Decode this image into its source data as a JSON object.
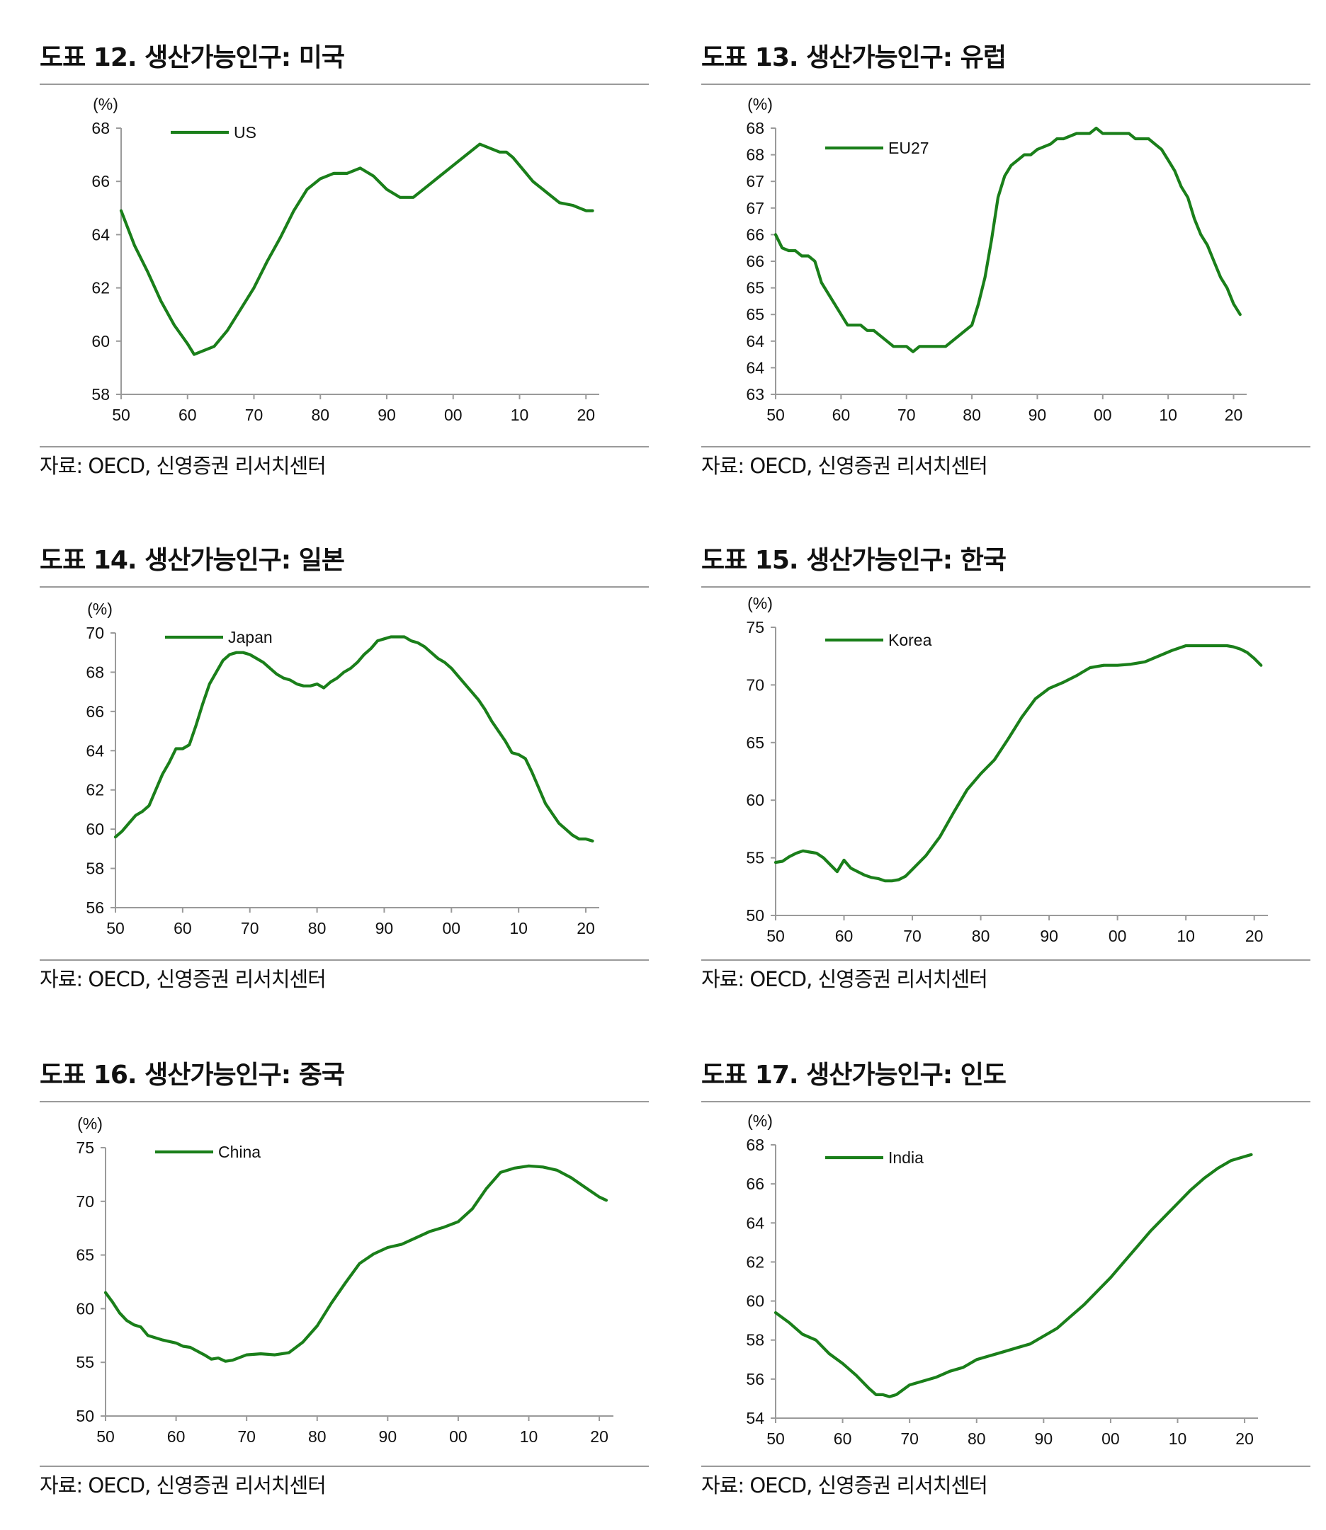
{
  "source_text": "자료: OECD, 신영증권 리서치센터",
  "line_color": "#1a7f1a",
  "panels": [
    {
      "title": "도표 12. 생산가능인구: 미국",
      "source": "자료: OECD, 신영증권 리서치센터",
      "chart_data": {
        "type": "line",
        "title": "도표 12. 생산가능인구: 미국",
        "ylabel": "(%)",
        "xlabel": "",
        "ylim": [
          58,
          68
        ],
        "yticks": [
          "58",
          "60",
          "62",
          "64",
          "66",
          "68"
        ],
        "xlim": [
          1950,
          2022
        ],
        "xticks": [
          "50",
          "60",
          "70",
          "80",
          "90",
          "00",
          "10",
          "20"
        ],
        "legend_position": "top-left",
        "grid": false,
        "series": [
          {
            "name": "US",
            "x": [
              1950,
              1952,
              1954,
              1956,
              1958,
              1960,
              1961,
              1962,
              1964,
              1966,
              1968,
              1970,
              1972,
              1974,
              1976,
              1978,
              1980,
              1982,
              1984,
              1986,
              1988,
              1990,
              1992,
              1994,
              1996,
              1998,
              2000,
              2002,
              2004,
              2006,
              2007,
              2008,
              2009,
              2010,
              2011,
              2012,
              2014,
              2016,
              2018,
              2019,
              2020,
              2021
            ],
            "y": [
              64.9,
              63.6,
              62.6,
              61.5,
              60.6,
              59.9,
              59.5,
              59.6,
              59.8,
              60.4,
              61.2,
              62.0,
              63.0,
              63.9,
              64.9,
              65.7,
              66.1,
              66.3,
              66.3,
              66.5,
              66.2,
              65.7,
              65.4,
              65.4,
              65.8,
              66.2,
              66.6,
              67.0,
              67.4,
              67.2,
              67.1,
              67.1,
              66.9,
              66.6,
              66.3,
              66.0,
              65.6,
              65.2,
              65.1,
              65.0,
              64.9,
              64.9
            ]
          }
        ]
      }
    },
    {
      "title": "도표 13. 생산가능인구: 유럽",
      "source": "자료: OECD, 신영증권 리서치센터",
      "chart_data": {
        "type": "line",
        "title": "도표 13. 생산가능인구: 유럽",
        "ylabel": "(%)",
        "xlabel": "",
        "ylim": [
          63,
          68
        ],
        "yticks": [
          "63",
          "64",
          "64",
          "65",
          "65",
          "66",
          "66",
          "67",
          "67",
          "68",
          "68"
        ],
        "xlim": [
          1950,
          2022
        ],
        "xticks": [
          "50",
          "60",
          "70",
          "80",
          "90",
          "00",
          "10",
          "20"
        ],
        "legend_position": "top-left",
        "grid": false,
        "series": [
          {
            "name": "EU27",
            "x": [
              1950,
              1951,
              1952,
              1953,
              1954,
              1955,
              1956,
              1957,
              1958,
              1960,
              1961,
              1962,
              1963,
              1964,
              1965,
              1966,
              1968,
              1970,
              1971,
              1972,
              1974,
              1976,
              1978,
              1979,
              1980,
              1981,
              1982,
              1983,
              1984,
              1985,
              1986,
              1988,
              1989,
              1990,
              1992,
              1993,
              1994,
              1996,
              1998,
              1999,
              2000,
              2002,
              2004,
              2005,
              2006,
              2007,
              2008,
              2009,
              2010,
              2011,
              2012,
              2013,
              2014,
              2015,
              2016,
              2017,
              2018,
              2019,
              2020,
              2021
            ],
            "y": [
              66.0,
              65.75,
              65.7,
              65.7,
              65.6,
              65.6,
              65.5,
              65.1,
              64.9,
              64.5,
              64.3,
              64.3,
              64.3,
              64.2,
              64.2,
              64.1,
              63.9,
              63.9,
              63.8,
              63.9,
              63.9,
              63.9,
              64.1,
              64.2,
              64.3,
              64.7,
              65.2,
              65.9,
              66.7,
              67.1,
              67.3,
              67.5,
              67.5,
              67.6,
              67.7,
              67.8,
              67.8,
              67.9,
              67.9,
              68.0,
              67.9,
              67.9,
              67.9,
              67.8,
              67.8,
              67.8,
              67.7,
              67.6,
              67.4,
              67.2,
              66.9,
              66.7,
              66.3,
              66.0,
              65.8,
              65.5,
              65.2,
              65.0,
              64.7,
              64.5
            ]
          }
        ]
      }
    },
    {
      "title": "도표 14. 생산가능인구: 일본",
      "source": "자료: OECD, 신영증권 리서치센터",
      "chart_data": {
        "type": "line",
        "title": "도표 14. 생산가능인구: 일본",
        "ylabel": "(%)",
        "xlabel": "",
        "ylim": [
          56,
          70
        ],
        "yticks": [
          "56",
          "58",
          "60",
          "62",
          "64",
          "66",
          "68",
          "70"
        ],
        "xlim": [
          1950,
          2022
        ],
        "xticks": [
          "50",
          "60",
          "70",
          "80",
          "90",
          "00",
          "10",
          "20"
        ],
        "legend_position": "top-left",
        "grid": false,
        "series": [
          {
            "name": "Japan",
            "x": [
              1950,
              1951,
              1952,
              1953,
              1954,
              1955,
              1956,
              1957,
              1958,
              1959,
              1960,
              1961,
              1962,
              1963,
              1964,
              1965,
              1966,
              1967,
              1968,
              1969,
              1970,
              1971,
              1972,
              1973,
              1974,
              1975,
              1976,
              1977,
              1978,
              1979,
              1980,
              1981,
              1982,
              1983,
              1984,
              1985,
              1986,
              1987,
              1988,
              1989,
              1990,
              1991,
              1992,
              1993,
              1994,
              1995,
              1996,
              1997,
              1998,
              1999,
              2000,
              2001,
              2002,
              2003,
              2004,
              2005,
              2006,
              2007,
              2008,
              2009,
              2010,
              2011,
              2012,
              2013,
              2014,
              2015,
              2016,
              2017,
              2018,
              2019,
              2020,
              2021
            ],
            "y": [
              59.6,
              59.9,
              60.3,
              60.7,
              60.9,
              61.2,
              62.0,
              62.8,
              63.4,
              64.1,
              64.1,
              64.3,
              65.3,
              66.4,
              67.4,
              68.0,
              68.6,
              68.9,
              69.0,
              69.0,
              68.9,
              68.7,
              68.5,
              68.2,
              67.9,
              67.7,
              67.6,
              67.4,
              67.3,
              67.3,
              67.4,
              67.2,
              67.5,
              67.7,
              68.0,
              68.2,
              68.5,
              68.9,
              69.2,
              69.6,
              69.7,
              69.8,
              69.8,
              69.8,
              69.6,
              69.5,
              69.3,
              69.0,
              68.7,
              68.5,
              68.2,
              67.8,
              67.4,
              67.0,
              66.6,
              66.1,
              65.5,
              65.0,
              64.5,
              63.9,
              63.8,
              63.6,
              62.9,
              62.1,
              61.3,
              60.8,
              60.3,
              60.0,
              59.7,
              59.5,
              59.5,
              59.4
            ]
          }
        ]
      }
    },
    {
      "title": "도표 15. 생산가능인구: 한국",
      "source": "자료: OECD, 신영증권 리서치센터",
      "chart_data": {
        "type": "line",
        "title": "도표 15. 생산가능인구: 한국",
        "ylabel": "(%)",
        "xlabel": "",
        "ylim": [
          50,
          75
        ],
        "yticks": [
          "50",
          "55",
          "60",
          "65",
          "70",
          "75"
        ],
        "xlim": [
          1950,
          2022
        ],
        "xticks": [
          "50",
          "60",
          "70",
          "80",
          "90",
          "00",
          "10",
          "20"
        ],
        "legend_position": "top-left",
        "grid": false,
        "series": [
          {
            "name": "Korea",
            "x": [
              1950,
              1951,
              1952,
              1953,
              1954,
              1955,
              1956,
              1957,
              1958,
              1959,
              1960,
              1961,
              1962,
              1963,
              1964,
              1965,
              1966,
              1967,
              1968,
              1969,
              1970,
              1972,
              1974,
              1976,
              1978,
              1980,
              1982,
              1984,
              1986,
              1988,
              1990,
              1992,
              1994,
              1996,
              1998,
              2000,
              2002,
              2004,
              2006,
              2008,
              2010,
              2012,
              2014,
              2016,
              2017,
              2018,
              2019,
              2020,
              2021
            ],
            "y": [
              54.6,
              54.7,
              55.1,
              55.4,
              55.6,
              55.5,
              55.4,
              55.0,
              54.4,
              53.8,
              54.8,
              54.1,
              53.8,
              53.5,
              53.3,
              53.2,
              53.0,
              53.0,
              53.1,
              53.4,
              54.0,
              55.2,
              56.8,
              58.9,
              60.9,
              62.3,
              63.5,
              65.3,
              67.2,
              68.8,
              69.7,
              70.2,
              70.8,
              71.5,
              71.7,
              71.7,
              71.8,
              72.0,
              72.5,
              73.0,
              73.4,
              73.4,
              73.4,
              73.4,
              73.3,
              73.1,
              72.8,
              72.3,
              71.7
            ]
          }
        ]
      }
    },
    {
      "title": "도표 16. 생산가능인구: 중국",
      "source": "자료: OECD, 신영증권 리서치센터",
      "chart_data": {
        "type": "line",
        "title": "도표 16. 생산가능인구: 중국",
        "ylabel": "(%)",
        "xlabel": "",
        "ylim": [
          50,
          75
        ],
        "yticks": [
          "50",
          "55",
          "60",
          "65",
          "70",
          "75"
        ],
        "xlim": [
          1950,
          2022
        ],
        "xticks": [
          "50",
          "60",
          "70",
          "80",
          "90",
          "00",
          "10",
          "20"
        ],
        "legend_position": "top-left",
        "grid": false,
        "series": [
          {
            "name": "China",
            "x": [
              1950,
              1951,
              1952,
              1953,
              1954,
              1955,
              1956,
              1958,
              1960,
              1961,
              1962,
              1964,
              1965,
              1966,
              1967,
              1968,
              1970,
              1972,
              1974,
              1976,
              1978,
              1980,
              1982,
              1984,
              1986,
              1988,
              1990,
              1992,
              1994,
              1996,
              1998,
              2000,
              2002,
              2004,
              2006,
              2008,
              2010,
              2012,
              2014,
              2016,
              2018,
              2020,
              2021
            ],
            "y": [
              61.5,
              60.6,
              59.6,
              58.9,
              58.5,
              58.3,
              57.5,
              57.1,
              56.8,
              56.5,
              56.4,
              55.7,
              55.3,
              55.4,
              55.1,
              55.2,
              55.7,
              55.8,
              55.7,
              55.9,
              56.9,
              58.4,
              60.5,
              62.4,
              64.2,
              65.1,
              65.7,
              66.0,
              66.6,
              67.2,
              67.6,
              68.1,
              69.3,
              71.2,
              72.7,
              73.1,
              73.3,
              73.2,
              72.9,
              72.2,
              71.3,
              70.4,
              70.1
            ]
          }
        ]
      }
    },
    {
      "title": "도표 17. 생산가능인구: 인도",
      "source": "자료: OECD, 신영증권 리서치센터",
      "chart_data": {
        "type": "line",
        "title": "도표 17. 생산가능인구: 인도",
        "ylabel": "(%)",
        "xlabel": "",
        "ylim": [
          54,
          68
        ],
        "yticks": [
          "54",
          "56",
          "58",
          "60",
          "62",
          "64",
          "66",
          "68"
        ],
        "xlim": [
          1950,
          2022
        ],
        "xticks": [
          "50",
          "60",
          "70",
          "80",
          "90",
          "00",
          "10",
          "20"
        ],
        "legend_position": "top-left",
        "grid": false,
        "series": [
          {
            "name": "India",
            "x": [
              1950,
              1952,
              1954,
              1956,
              1958,
              1960,
              1962,
              1964,
              1965,
              1966,
              1967,
              1968,
              1970,
              1972,
              1974,
              1976,
              1978,
              1980,
              1982,
              1984,
              1986,
              1988,
              1990,
              1992,
              1994,
              1996,
              1998,
              2000,
              2002,
              2004,
              2006,
              2008,
              2010,
              2012,
              2014,
              2016,
              2018,
              2020,
              2021
            ],
            "y": [
              59.4,
              58.9,
              58.3,
              58.0,
              57.3,
              56.8,
              56.2,
              55.5,
              55.2,
              55.2,
              55.1,
              55.2,
              55.7,
              55.9,
              56.1,
              56.4,
              56.6,
              57.0,
              57.2,
              57.4,
              57.6,
              57.8,
              58.2,
              58.6,
              59.2,
              59.8,
              60.5,
              61.2,
              62.0,
              62.8,
              63.6,
              64.3,
              65.0,
              65.7,
              66.3,
              66.8,
              67.2,
              67.4,
              67.5
            ]
          }
        ]
      }
    }
  ]
}
